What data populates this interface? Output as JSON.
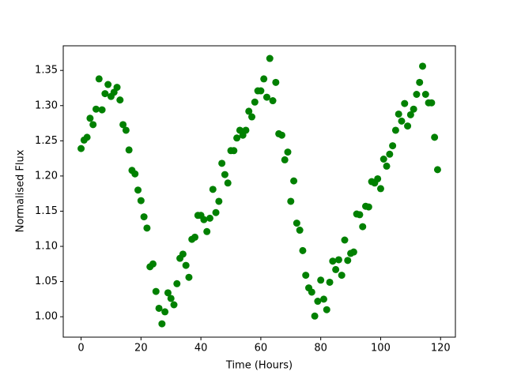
{
  "chart_data": {
    "type": "scatter",
    "x_label": "Time (Hours)",
    "y_label": "Normalised Flux",
    "color": "#008000",
    "x": [
      0,
      1,
      2,
      3,
      4,
      5,
      6,
      7,
      8,
      9,
      10,
      11,
      12,
      13,
      14,
      15,
      16,
      17,
      18,
      19,
      20,
      21,
      22,
      23,
      24,
      25,
      26,
      27,
      28,
      29,
      30,
      31,
      32,
      33,
      34,
      35,
      36,
      37,
      38,
      39,
      40,
      41,
      42,
      43,
      44,
      45,
      46,
      47,
      48,
      49,
      50,
      51,
      52,
      53,
      54,
      55,
      56,
      57,
      58,
      59,
      60,
      61,
      62,
      63,
      64,
      65,
      66,
      67,
      68,
      69,
      70,
      71,
      72,
      73,
      74,
      75,
      76,
      77,
      78,
      79,
      80,
      81,
      82,
      83,
      84,
      85,
      86,
      87,
      88,
      89,
      90,
      91,
      92,
      93,
      94,
      95,
      96,
      97,
      98,
      99,
      100,
      101,
      102,
      103,
      104,
      105,
      106,
      107,
      108,
      109,
      110,
      111,
      112,
      113,
      114,
      115,
      116,
      117,
      118,
      119
    ],
    "values": [
      1.239,
      1.251,
      1.255,
      1.282,
      1.273,
      1.295,
      1.338,
      1.294,
      1.317,
      1.33,
      1.313,
      1.319,
      1.326,
      1.308,
      1.273,
      1.265,
      1.237,
      1.208,
      1.203,
      1.18,
      1.165,
      1.142,
      1.126,
      1.071,
      1.075,
      1.036,
      1.012,
      0.99,
      1.007,
      1.034,
      1.026,
      1.017,
      1.047,
      1.083,
      1.089,
      1.073,
      1.056,
      1.11,
      1.113,
      1.144,
      1.144,
      1.138,
      1.121,
      1.14,
      1.181,
      1.148,
      1.164,
      1.218,
      1.202,
      1.19,
      1.236,
      1.236,
      1.254,
      1.265,
      1.258,
      1.265,
      1.292,
      1.284,
      1.305,
      1.321,
      1.321,
      1.338,
      1.312,
      1.367,
      1.307,
      1.333,
      1.26,
      1.258,
      1.223,
      1.234,
      1.164,
      1.193,
      1.133,
      1.123,
      1.094,
      1.059,
      1.041,
      1.035,
      1.001,
      1.022,
      1.052,
      1.025,
      1.01,
      1.049,
      1.079,
      1.067,
      1.081,
      1.059,
      1.109,
      1.08,
      1.09,
      1.092,
      1.146,
      1.145,
      1.128,
      1.157,
      1.156,
      1.192,
      1.19,
      1.196,
      1.182,
      1.224,
      1.214,
      1.231,
      1.243,
      1.265,
      1.288,
      1.278,
      1.303,
      1.271,
      1.287,
      1.295,
      1.316,
      1.333,
      1.356,
      1.316,
      1.304,
      1.304,
      1.255,
      1.209
    ],
    "xlim": [
      -5.95,
      124.95
    ],
    "ylim": [
      0.971,
      1.385
    ],
    "xticks": [
      0,
      20,
      40,
      60,
      80,
      100,
      120
    ],
    "yticks": [
      {
        "value": 1,
        "label": "1.00"
      },
      1.05,
      {
        "value": 1.1,
        "label": "1.10"
      },
      1.15,
      {
        "value": 1.2,
        "label": "1.20"
      },
      1.25,
      {
        "value": 1.3,
        "label": "1.30"
      },
      1.35
    ],
    "grid": false
  }
}
